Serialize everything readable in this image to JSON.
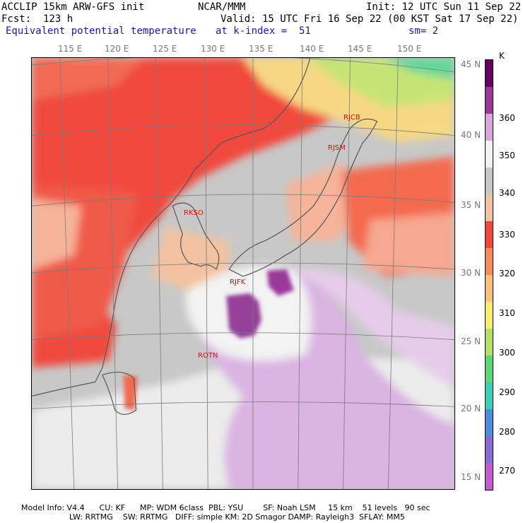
{
  "header": {
    "model": "ACCLIP 15km ARW-GFS init",
    "org": "NCAR/MMM",
    "init": "Init: 12 UTC Sun 11 Sep 22",
    "fcst": "Fcst:  123 h",
    "valid": "Valid: 15 UTC Fri 16 Sep 22 (00 KST Sat 17 Sep 22)",
    "field": "Equivalent potential temperature",
    "level": "at k-index =  51",
    "smooth": "sm= 2"
  },
  "axes": {
    "lon_labels": [
      "115 E",
      "120 E",
      "125 E",
      "130 E",
      "135 E",
      "140 E",
      "145 E",
      "150 E"
    ],
    "lat_labels": [
      "45 N",
      "40 N",
      "35 N",
      "30 N",
      "25 N",
      "20 N",
      "15 N"
    ]
  },
  "stations": [
    {
      "id": "RJCB"
    },
    {
      "id": "RJSM"
    },
    {
      "id": "RKSO"
    },
    {
      "id": "RJFK"
    },
    {
      "id": "ROTN"
    }
  ],
  "colorbar": {
    "unit": "K",
    "labels": [
      "360",
      "350",
      "340",
      "330",
      "320",
      "310",
      "300",
      "290",
      "280",
      "270"
    ],
    "colors": [
      "#660066",
      "#9b399b",
      "#d9a8d9",
      "#f2f2f2",
      "#c8c8c8",
      "#f3c2a0",
      "#f2483c",
      "#f58c5a",
      "#f9c27a",
      "#f6ef68",
      "#b6e060",
      "#5ad878",
      "#3ccfb8",
      "#4a8ee0",
      "#8a6ad4",
      "#c25ccc"
    ]
  },
  "footer": {
    "line1": "Model Info: V4.4      CU: KF      MP: WDM 6class  PBL: YSU        SF: Noah LSM     15 km    51 levels   90 sec",
    "line2": "LW: RRTMG    SW: RRTMG   DIFF: simple KM: 2D Smagor DAMP: Rayleigh3  SFLAY: MM5"
  }
}
